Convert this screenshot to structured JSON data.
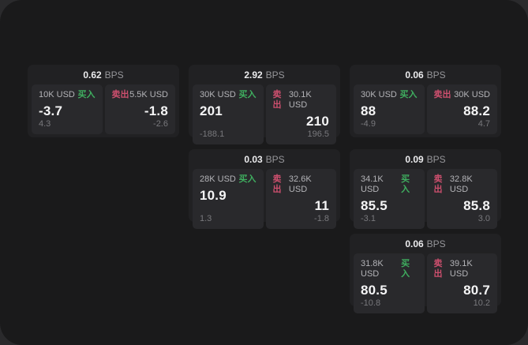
{
  "colors": {
    "buy_green": "#3fae5f",
    "sell_red": "#cd4f6e",
    "window_bg": "#1a1a1b",
    "card_bg": "#212123",
    "pane_bg": "#29292c"
  },
  "labels": {
    "bps_unit": "BPS",
    "buy": "买入",
    "sell": "卖出"
  },
  "cards": [
    {
      "row": 1,
      "col": 1,
      "bps": "0.62",
      "buy": {
        "amount": "10K USD",
        "price": "-3.7",
        "delta": "4.3"
      },
      "sell": {
        "amount": "5.5K USD",
        "price": "-1.8",
        "delta": "-2.6"
      }
    },
    {
      "row": 1,
      "col": 2,
      "bps": "2.92",
      "buy": {
        "amount": "30K USD",
        "price": "201",
        "delta": "-188.1"
      },
      "sell": {
        "amount": "30.1K USD",
        "price": "210",
        "delta": "196.5"
      }
    },
    {
      "row": 1,
      "col": 3,
      "bps": "0.06",
      "buy": {
        "amount": "30K USD",
        "price": "88",
        "delta": "-4.9"
      },
      "sell": {
        "amount": "30K USD",
        "price": "88.2",
        "delta": "4.7"
      }
    },
    {
      "row": 2,
      "col": 2,
      "bps": "0.03",
      "buy": {
        "amount": "28K USD",
        "price": "10.9",
        "delta": "1.3"
      },
      "sell": {
        "amount": "32.6K USD",
        "price": "11",
        "delta": "-1.8"
      }
    },
    {
      "row": 2,
      "col": 3,
      "bps": "0.09",
      "buy": {
        "amount": "34.1K USD",
        "price": "85.5",
        "delta": "-3.1"
      },
      "sell": {
        "amount": "32.8K USD",
        "price": "85.8",
        "delta": "3.0"
      }
    },
    {
      "row": 3,
      "col": 3,
      "bps": "0.06",
      "buy": {
        "amount": "31.8K USD",
        "price": "80.5",
        "delta": "-10.8"
      },
      "sell": {
        "amount": "39.1K USD",
        "price": "80.7",
        "delta": "10.2"
      }
    }
  ]
}
